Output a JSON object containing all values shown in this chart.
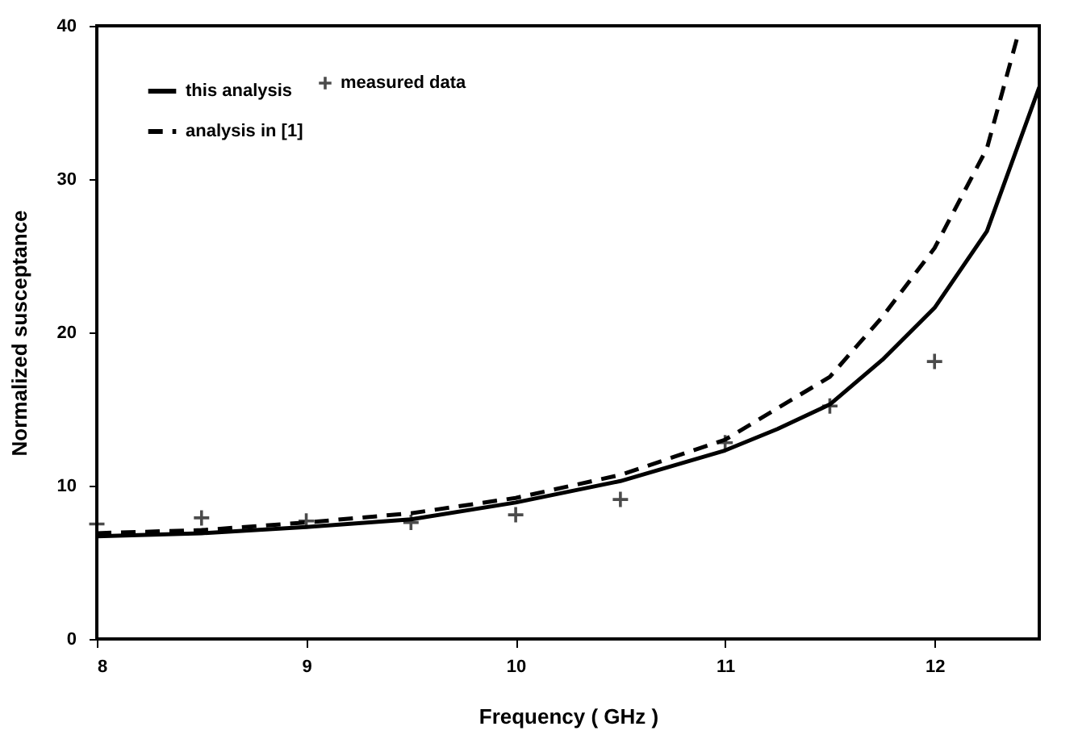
{
  "chart_data": {
    "type": "line",
    "xlabel": "Frequency ( GHz )",
    "ylabel": "Normalized susceptance",
    "xlim": [
      8,
      12.5
    ],
    "xticks": [
      8,
      9,
      10,
      11,
      12
    ],
    "ylim": [
      0,
      40
    ],
    "yticks": [
      0,
      10,
      20,
      30,
      40
    ],
    "grid": false,
    "legend": "top left",
    "series": [
      {
        "name": "this analysis",
        "color": "#000000",
        "line_style": "solid",
        "marker": "none",
        "x": [
          8,
          8.5,
          9,
          9.5,
          10,
          10.5,
          11,
          11.25,
          11.5,
          11.75,
          12,
          12.25,
          12.5
        ],
        "values": [
          6.7,
          6.9,
          7.3,
          7.8,
          8.9,
          10.3,
          12.3,
          13.7,
          15.3,
          18.2,
          21.6,
          26.6,
          36
        ]
      },
      {
        "name": "analysis in [1]",
        "color": "#000000",
        "line_style": "dashed",
        "marker": "none",
        "x": [
          8,
          8.5,
          9,
          9.5,
          10,
          10.5,
          11,
          11.5,
          11.75,
          12,
          12.25,
          12.4
        ],
        "values": [
          6.9,
          7.1,
          7.6,
          8.2,
          9.2,
          10.7,
          13,
          17.1,
          21,
          25.5,
          32,
          39.5
        ]
      },
      {
        "name": "measured data",
        "color": "#000000",
        "type": "scatter",
        "marker": "cross",
        "x": [
          8,
          8.5,
          9,
          9.5,
          10,
          10.5,
          11,
          11.5,
          12
        ],
        "values": [
          7.5,
          7.9,
          7.7,
          7.6,
          8.1,
          9.1,
          12.8,
          15.2,
          18.1
        ]
      }
    ]
  }
}
